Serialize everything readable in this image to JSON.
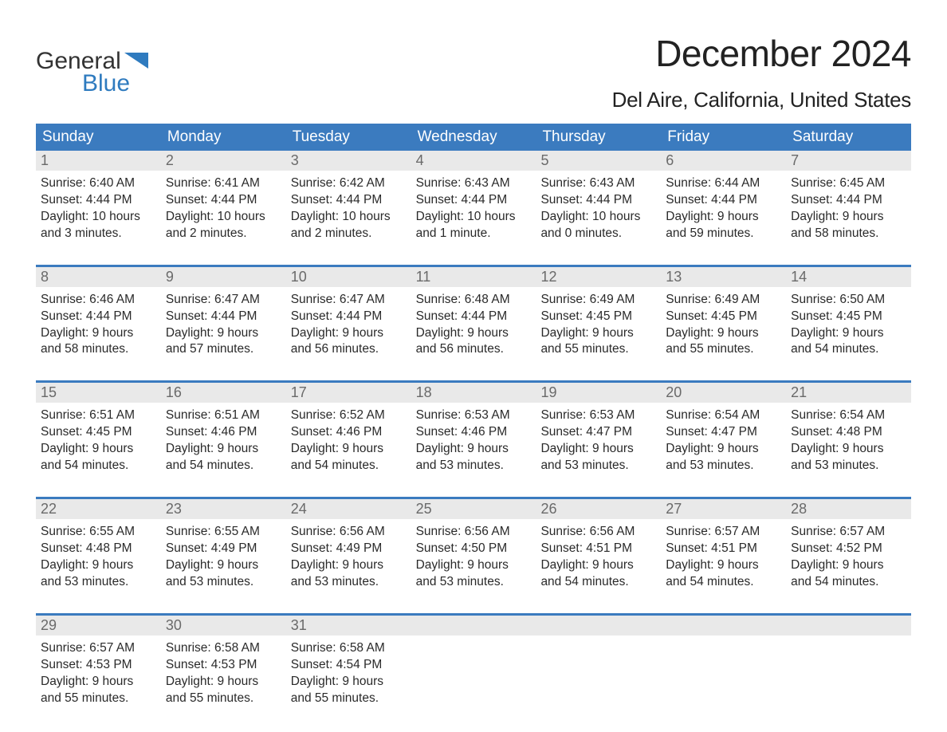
{
  "logo": {
    "word1": "General",
    "word2": "Blue",
    "word1_color": "#333333",
    "word2_color": "#2f7bbf",
    "triangle_color": "#2f7bbf"
  },
  "header": {
    "month_title": "December 2024",
    "location": "Del Aire, California, United States"
  },
  "colors": {
    "header_bg": "#3b7bbf",
    "header_text": "#ffffff",
    "week_divider": "#3b7bbf",
    "date_bg": "#e9e9e9",
    "date_text": "#6a6a6a",
    "body_text": "#2a2a2a",
    "page_bg": "#ffffff"
  },
  "day_names": [
    "Sunday",
    "Monday",
    "Tuesday",
    "Wednesday",
    "Thursday",
    "Friday",
    "Saturday"
  ],
  "weeks": [
    [
      {
        "date": "1",
        "sunrise": "Sunrise: 6:40 AM",
        "sunset": "Sunset: 4:44 PM",
        "daylight1": "Daylight: 10 hours",
        "daylight2": "and 3 minutes."
      },
      {
        "date": "2",
        "sunrise": "Sunrise: 6:41 AM",
        "sunset": "Sunset: 4:44 PM",
        "daylight1": "Daylight: 10 hours",
        "daylight2": "and 2 minutes."
      },
      {
        "date": "3",
        "sunrise": "Sunrise: 6:42 AM",
        "sunset": "Sunset: 4:44 PM",
        "daylight1": "Daylight: 10 hours",
        "daylight2": "and 2 minutes."
      },
      {
        "date": "4",
        "sunrise": "Sunrise: 6:43 AM",
        "sunset": "Sunset: 4:44 PM",
        "daylight1": "Daylight: 10 hours",
        "daylight2": "and 1 minute."
      },
      {
        "date": "5",
        "sunrise": "Sunrise: 6:43 AM",
        "sunset": "Sunset: 4:44 PM",
        "daylight1": "Daylight: 10 hours",
        "daylight2": "and 0 minutes."
      },
      {
        "date": "6",
        "sunrise": "Sunrise: 6:44 AM",
        "sunset": "Sunset: 4:44 PM",
        "daylight1": "Daylight: 9 hours",
        "daylight2": "and 59 minutes."
      },
      {
        "date": "7",
        "sunrise": "Sunrise: 6:45 AM",
        "sunset": "Sunset: 4:44 PM",
        "daylight1": "Daylight: 9 hours",
        "daylight2": "and 58 minutes."
      }
    ],
    [
      {
        "date": "8",
        "sunrise": "Sunrise: 6:46 AM",
        "sunset": "Sunset: 4:44 PM",
        "daylight1": "Daylight: 9 hours",
        "daylight2": "and 58 minutes."
      },
      {
        "date": "9",
        "sunrise": "Sunrise: 6:47 AM",
        "sunset": "Sunset: 4:44 PM",
        "daylight1": "Daylight: 9 hours",
        "daylight2": "and 57 minutes."
      },
      {
        "date": "10",
        "sunrise": "Sunrise: 6:47 AM",
        "sunset": "Sunset: 4:44 PM",
        "daylight1": "Daylight: 9 hours",
        "daylight2": "and 56 minutes."
      },
      {
        "date": "11",
        "sunrise": "Sunrise: 6:48 AM",
        "sunset": "Sunset: 4:44 PM",
        "daylight1": "Daylight: 9 hours",
        "daylight2": "and 56 minutes."
      },
      {
        "date": "12",
        "sunrise": "Sunrise: 6:49 AM",
        "sunset": "Sunset: 4:45 PM",
        "daylight1": "Daylight: 9 hours",
        "daylight2": "and 55 minutes."
      },
      {
        "date": "13",
        "sunrise": "Sunrise: 6:49 AM",
        "sunset": "Sunset: 4:45 PM",
        "daylight1": "Daylight: 9 hours",
        "daylight2": "and 55 minutes."
      },
      {
        "date": "14",
        "sunrise": "Sunrise: 6:50 AM",
        "sunset": "Sunset: 4:45 PM",
        "daylight1": "Daylight: 9 hours",
        "daylight2": "and 54 minutes."
      }
    ],
    [
      {
        "date": "15",
        "sunrise": "Sunrise: 6:51 AM",
        "sunset": "Sunset: 4:45 PM",
        "daylight1": "Daylight: 9 hours",
        "daylight2": "and 54 minutes."
      },
      {
        "date": "16",
        "sunrise": "Sunrise: 6:51 AM",
        "sunset": "Sunset: 4:46 PM",
        "daylight1": "Daylight: 9 hours",
        "daylight2": "and 54 minutes."
      },
      {
        "date": "17",
        "sunrise": "Sunrise: 6:52 AM",
        "sunset": "Sunset: 4:46 PM",
        "daylight1": "Daylight: 9 hours",
        "daylight2": "and 54 minutes."
      },
      {
        "date": "18",
        "sunrise": "Sunrise: 6:53 AM",
        "sunset": "Sunset: 4:46 PM",
        "daylight1": "Daylight: 9 hours",
        "daylight2": "and 53 minutes."
      },
      {
        "date": "19",
        "sunrise": "Sunrise: 6:53 AM",
        "sunset": "Sunset: 4:47 PM",
        "daylight1": "Daylight: 9 hours",
        "daylight2": "and 53 minutes."
      },
      {
        "date": "20",
        "sunrise": "Sunrise: 6:54 AM",
        "sunset": "Sunset: 4:47 PM",
        "daylight1": "Daylight: 9 hours",
        "daylight2": "and 53 minutes."
      },
      {
        "date": "21",
        "sunrise": "Sunrise: 6:54 AM",
        "sunset": "Sunset: 4:48 PM",
        "daylight1": "Daylight: 9 hours",
        "daylight2": "and 53 minutes."
      }
    ],
    [
      {
        "date": "22",
        "sunrise": "Sunrise: 6:55 AM",
        "sunset": "Sunset: 4:48 PM",
        "daylight1": "Daylight: 9 hours",
        "daylight2": "and 53 minutes."
      },
      {
        "date": "23",
        "sunrise": "Sunrise: 6:55 AM",
        "sunset": "Sunset: 4:49 PM",
        "daylight1": "Daylight: 9 hours",
        "daylight2": "and 53 minutes."
      },
      {
        "date": "24",
        "sunrise": "Sunrise: 6:56 AM",
        "sunset": "Sunset: 4:49 PM",
        "daylight1": "Daylight: 9 hours",
        "daylight2": "and 53 minutes."
      },
      {
        "date": "25",
        "sunrise": "Sunrise: 6:56 AM",
        "sunset": "Sunset: 4:50 PM",
        "daylight1": "Daylight: 9 hours",
        "daylight2": "and 53 minutes."
      },
      {
        "date": "26",
        "sunrise": "Sunrise: 6:56 AM",
        "sunset": "Sunset: 4:51 PM",
        "daylight1": "Daylight: 9 hours",
        "daylight2": "and 54 minutes."
      },
      {
        "date": "27",
        "sunrise": "Sunrise: 6:57 AM",
        "sunset": "Sunset: 4:51 PM",
        "daylight1": "Daylight: 9 hours",
        "daylight2": "and 54 minutes."
      },
      {
        "date": "28",
        "sunrise": "Sunrise: 6:57 AM",
        "sunset": "Sunset: 4:52 PM",
        "daylight1": "Daylight: 9 hours",
        "daylight2": "and 54 minutes."
      }
    ],
    [
      {
        "date": "29",
        "sunrise": "Sunrise: 6:57 AM",
        "sunset": "Sunset: 4:53 PM",
        "daylight1": "Daylight: 9 hours",
        "daylight2": "and 55 minutes."
      },
      {
        "date": "30",
        "sunrise": "Sunrise: 6:58 AM",
        "sunset": "Sunset: 4:53 PM",
        "daylight1": "Daylight: 9 hours",
        "daylight2": "and 55 minutes."
      },
      {
        "date": "31",
        "sunrise": "Sunrise: 6:58 AM",
        "sunset": "Sunset: 4:54 PM",
        "daylight1": "Daylight: 9 hours",
        "daylight2": "and 55 minutes."
      },
      {
        "empty": true
      },
      {
        "empty": true
      },
      {
        "empty": true
      },
      {
        "empty": true
      }
    ]
  ]
}
